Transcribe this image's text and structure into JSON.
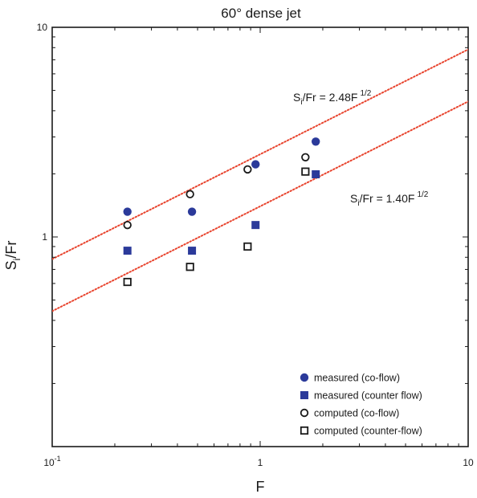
{
  "chart_data": {
    "type": "scatter",
    "title": "60° dense jet",
    "xlabel": "F",
    "ylabel": "Si/Fr",
    "ylabel_main": "S",
    "ylabel_sub": "i",
    "ylabel_rest": "/Fr",
    "xscale": "log",
    "yscale": "log",
    "xlim": [
      0.1,
      10
    ],
    "ylim": [
      0.1,
      10
    ],
    "grid": false,
    "legend_position": "bottom-right",
    "x_ticks": [
      {
        "value": 0.1,
        "base": "10",
        "exp": "-1"
      },
      {
        "value": 1,
        "base": "1",
        "exp": ""
      },
      {
        "value": 10,
        "base": "10",
        "exp": ""
      }
    ],
    "y_ticks": [
      {
        "value": 1,
        "label": "1"
      },
      {
        "value": 10,
        "label": "10"
      }
    ],
    "fit_lines": [
      {
        "coef": 2.48,
        "exponent": 0.5,
        "color": "#e8442e",
        "label_pre": "S",
        "label_sub": "i",
        "label_mid": "/Fr = 2.48F",
        "label_sup": "1/2"
      },
      {
        "coef": 1.4,
        "exponent": 0.5,
        "color": "#e8442e",
        "label_pre": "S",
        "label_sub": "i",
        "label_mid": "/Fr = 1.40F",
        "label_sup": "1/2"
      }
    ],
    "series": [
      {
        "name": "measured (co-flow)",
        "marker": "filled-circle",
        "color": "#2b3a9a",
        "points": [
          [
            0.23,
            1.32
          ],
          [
            0.47,
            1.32
          ],
          [
            0.95,
            2.22
          ],
          [
            1.85,
            2.85
          ]
        ]
      },
      {
        "name": "measured (counter flow)",
        "marker": "filled-square",
        "color": "#2b3a9a",
        "points": [
          [
            0.23,
            0.86
          ],
          [
            0.47,
            0.86
          ],
          [
            0.95,
            1.14
          ],
          [
            1.85,
            1.99
          ]
        ]
      },
      {
        "name": "computed (co-flow)",
        "marker": "open-circle",
        "color": "#1a1a1a",
        "points": [
          [
            0.23,
            1.14
          ],
          [
            0.46,
            1.6
          ],
          [
            0.87,
            2.1
          ],
          [
            1.65,
            2.4
          ]
        ]
      },
      {
        "name": "computed (counter-flow)",
        "marker": "open-square",
        "color": "#1a1a1a",
        "points": [
          [
            0.23,
            0.61
          ],
          [
            0.46,
            0.72
          ],
          [
            0.87,
            0.9
          ],
          [
            1.65,
            2.05
          ]
        ]
      }
    ]
  }
}
